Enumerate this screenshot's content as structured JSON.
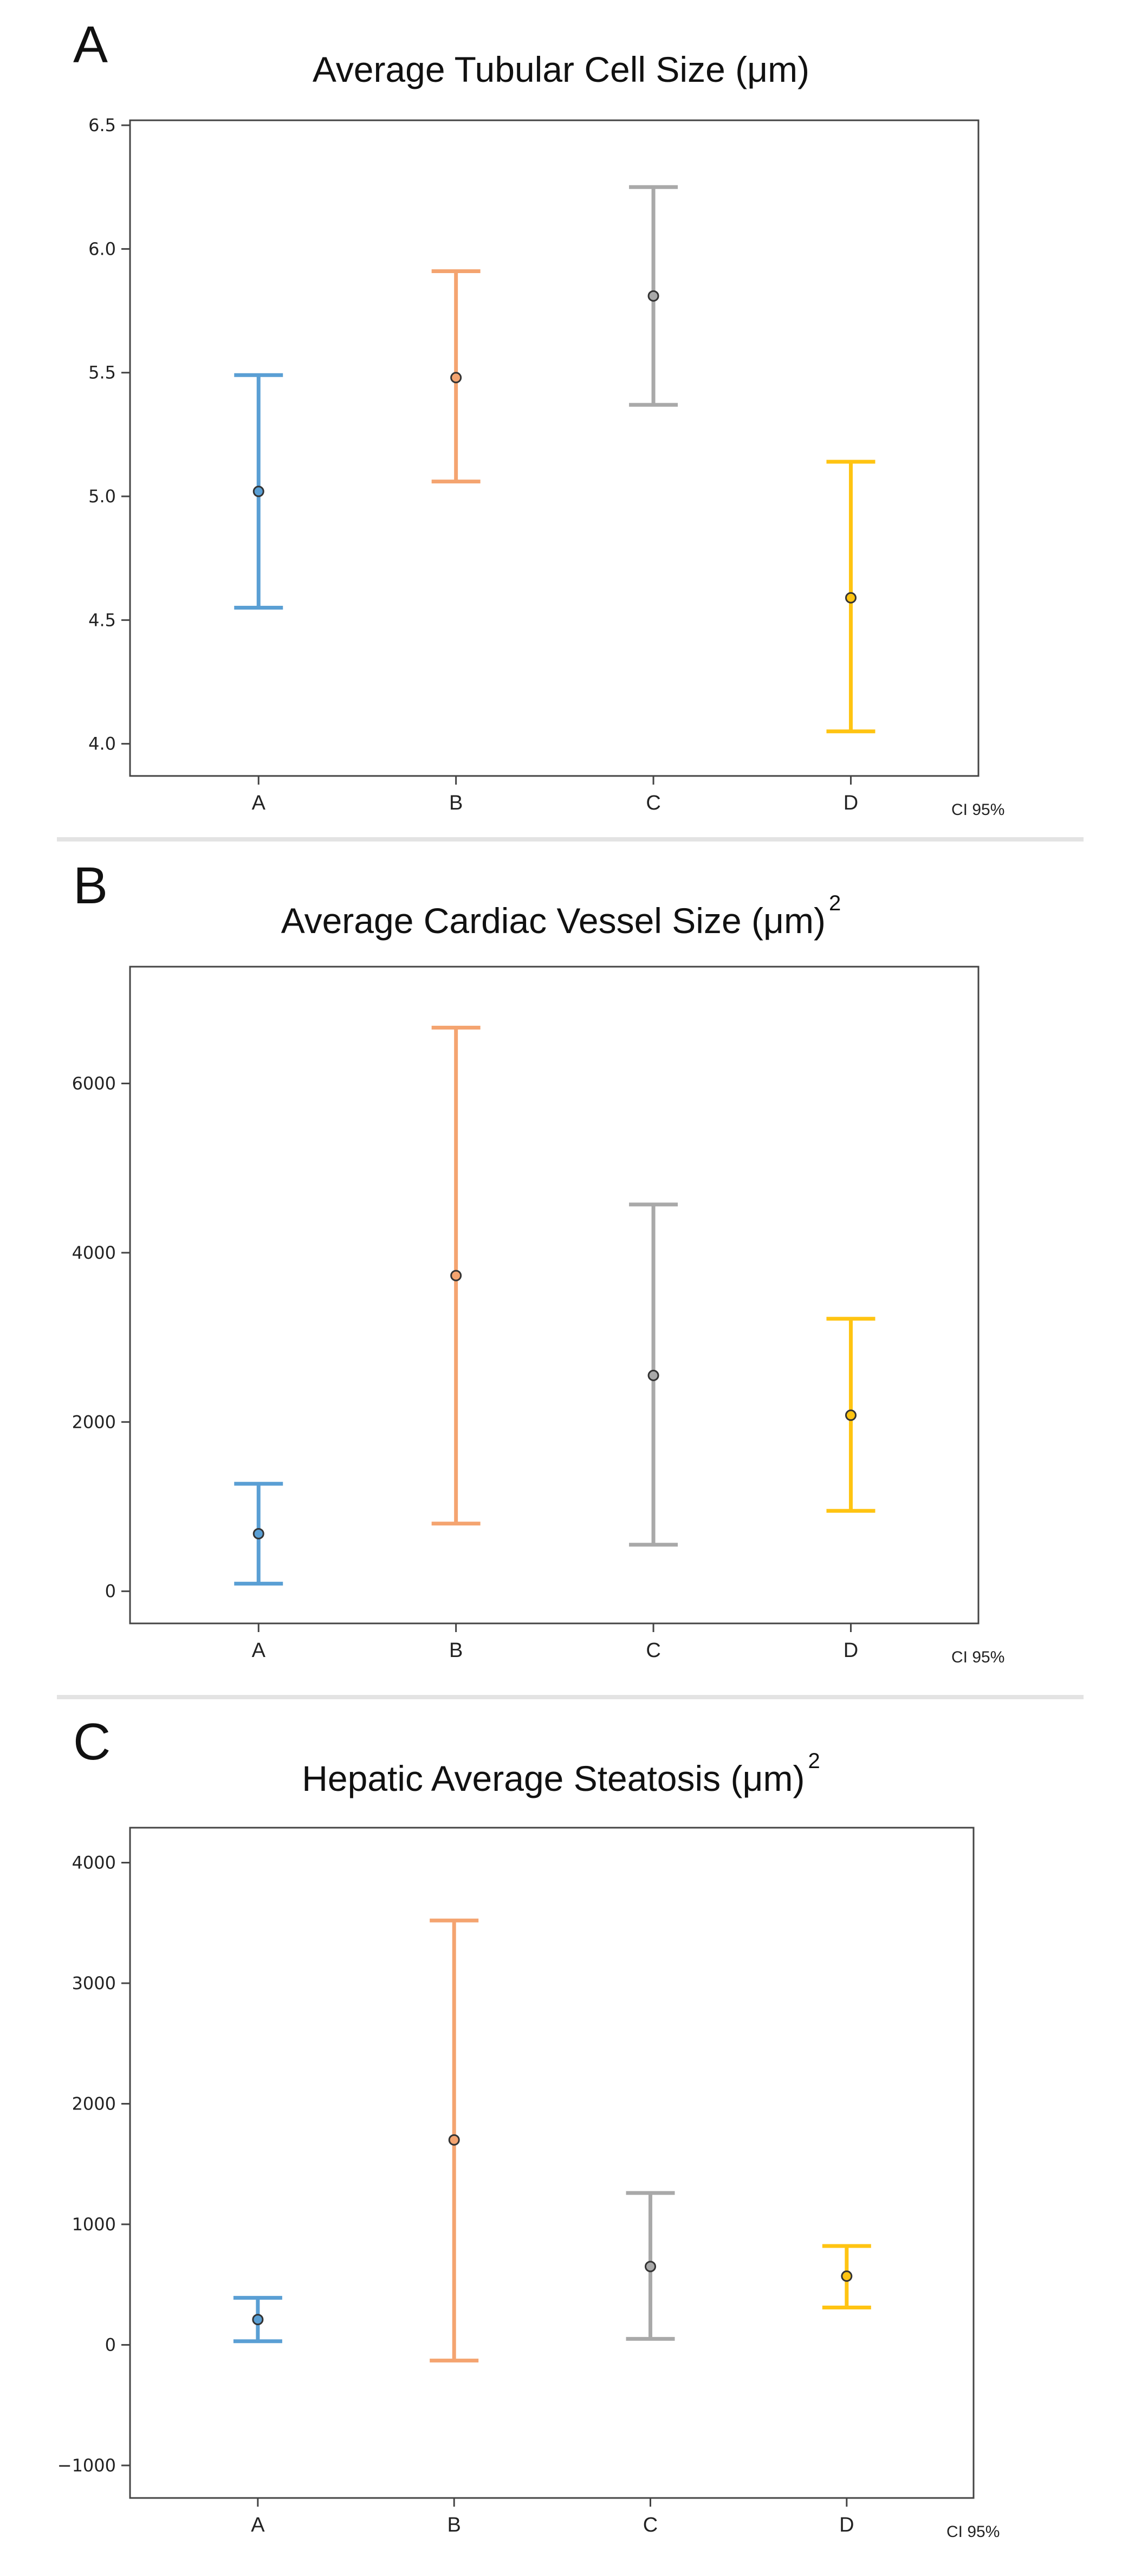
{
  "panels": [
    {
      "letter": "A",
      "title": "Average Tubular Cell Size (μm)",
      "superscript": "",
      "footnote": "CI 95%"
    },
    {
      "letter": "B",
      "title": "Average Cardiac Vessel Size (μm)",
      "superscript": "2",
      "footnote": "CI 95%"
    },
    {
      "letter": "C",
      "title": "Hepatic Average Steatosis (μm)",
      "superscript": "2",
      "footnote": "CI 95%"
    }
  ],
  "colors": {
    "A": "#5a9fd4",
    "B": "#f4a470",
    "C": "#a9a9a9",
    "D": "#ffc412"
  },
  "chart_data": [
    {
      "type": "errorbar",
      "title": "Average Tubular Cell Size (μm)",
      "xlabel": "",
      "ylabel": "",
      "categories": [
        "A",
        "B",
        "C",
        "D"
      ],
      "mean": [
        5.02,
        5.48,
        5.81,
        4.59
      ],
      "lower": [
        4.55,
        5.06,
        5.37,
        4.05
      ],
      "upper": [
        5.49,
        5.91,
        6.25,
        5.14
      ],
      "ylim": [
        3.87,
        6.52
      ],
      "yticks": [
        4.0,
        4.5,
        5.0,
        5.5,
        6.0,
        6.5
      ],
      "ytick_labels": [
        "4.0",
        "4.5",
        "5.0",
        "5.5",
        "6.0",
        "6.5"
      ],
      "annotation": "CI 95%"
    },
    {
      "type": "errorbar",
      "title": "Average Cardiac Vessel Size (μm)²",
      "xlabel": "",
      "ylabel": "",
      "categories": [
        "A",
        "B",
        "C",
        "D"
      ],
      "mean": [
        680,
        3730,
        2550,
        2080
      ],
      "lower": [
        90,
        800,
        550,
        950
      ],
      "upper": [
        1270,
        6660,
        4570,
        3220
      ],
      "ylim": [
        -380,
        7380
      ],
      "yticks": [
        0,
        2000,
        4000,
        6000
      ],
      "ytick_labels": [
        "0",
        "2000",
        "4000",
        "6000"
      ],
      "annotation": "CI 95%"
    },
    {
      "type": "errorbar",
      "title": "Hepatic Average Steatosis (μm)²",
      "xlabel": "",
      "ylabel": "",
      "categories": [
        "A",
        "B",
        "C",
        "D"
      ],
      "mean": [
        210,
        1700,
        650,
        570
      ],
      "lower": [
        30,
        -130,
        50,
        310
      ],
      "upper": [
        390,
        3520,
        1260,
        820
      ],
      "ylim": [
        -1270,
        4290
      ],
      "yticks": [
        -1000,
        0,
        1000,
        2000,
        3000,
        4000
      ],
      "ytick_labels": [
        "−1000",
        "0",
        "1000",
        "2000",
        "3000",
        "4000"
      ],
      "annotation": "CI 95%"
    }
  ]
}
